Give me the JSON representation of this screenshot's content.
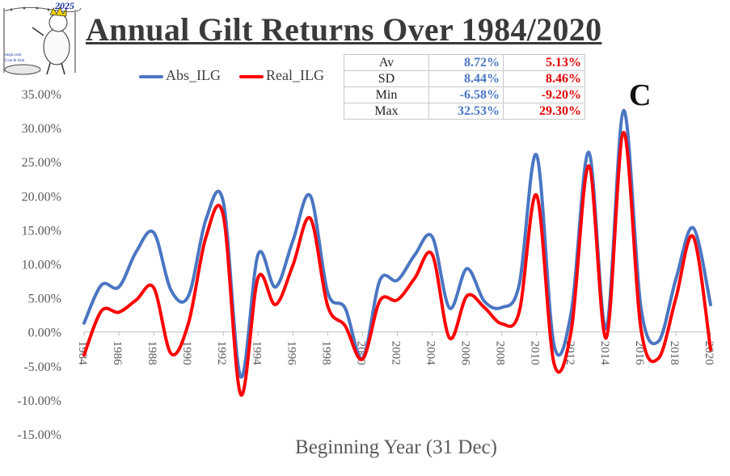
{
  "header": {
    "title": "Annual Gilt Returns Over 1984/2020",
    "logo_year": "2025",
    "logo_site": "ukrpi.com",
    "logo_tagline": "Cost & Arm"
  },
  "stats_table": {
    "rows": [
      {
        "label": "Av",
        "abs": "8.72%",
        "real": "5.13%"
      },
      {
        "label": "SD",
        "abs": "8.44%",
        "real": "8.46%"
      },
      {
        "label": "Min",
        "abs": "-6.58%",
        "real": "-9.20%"
      },
      {
        "label": "Max",
        "abs": "32.53%",
        "real": "29.30%"
      }
    ]
  },
  "corner_mark": "C",
  "colors": {
    "abs": "#4a76c2",
    "real": "#ff0000",
    "axis_text": "#595959",
    "title": "#3a3a3a"
  },
  "chart_data": {
    "type": "line",
    "title": "Annual Gilt Returns Over 1984/2020",
    "xlabel": "Beginning Year (31 Dec)",
    "ylabel": "",
    "ylim": [
      -15,
      35
    ],
    "yticks": [
      35,
      30,
      25,
      20,
      15,
      10,
      5,
      0,
      -5,
      -10,
      -15
    ],
    "ytick_labels": [
      "35.00%",
      "30.00%",
      "25.00%",
      "20.00%",
      "15.00%",
      "10.00%",
      "5.00%",
      "0.00%",
      "-5.00%",
      "-10.00%",
      "-15.00%"
    ],
    "xtick_labels": [
      "1984",
      "1986",
      "1988",
      "1990",
      "1992",
      "1994",
      "1996",
      "1998",
      "2000",
      "2002",
      "2004",
      "2006",
      "2008",
      "2010",
      "2012",
      "2014",
      "2016",
      "2018",
      "2020"
    ],
    "x": [
      1984,
      1985,
      1986,
      1987,
      1988,
      1989,
      1990,
      1991,
      1992,
      1993,
      1994,
      1995,
      1996,
      1997,
      1998,
      1999,
      2000,
      2001,
      2002,
      2003,
      2004,
      2005,
      2006,
      2007,
      2008,
      2009,
      2010,
      2011,
      2012,
      2013,
      2014,
      2015,
      2016,
      2017,
      2018,
      2019,
      2020
    ],
    "grid": false,
    "legend": "top-left",
    "series": [
      {
        "name": "Abs_ILG",
        "color": "#4a76c2",
        "values": [
          1.3,
          6.9,
          6.6,
          11.8,
          14.6,
          6.1,
          5.3,
          16.5,
          19.1,
          -6.58,
          11.4,
          6.6,
          13.4,
          20.0,
          5.8,
          3.5,
          -3.9,
          7.6,
          7.6,
          11.3,
          14.0,
          3.5,
          9.3,
          4.5,
          3.6,
          6.9,
          26.0,
          -1.9,
          3.0,
          26.4,
          0.5,
          32.53,
          3.5,
          -1.4,
          7.7,
          15.3,
          4.0
        ]
      },
      {
        "name": "Real_ILG",
        "color": "#ff0000",
        "values": [
          -3.4,
          3.1,
          2.9,
          4.7,
          6.5,
          -3.2,
          1.3,
          13.9,
          17.1,
          -9.2,
          8.0,
          4.0,
          9.8,
          16.7,
          3.8,
          0.9,
          -4.0,
          4.6,
          4.7,
          7.9,
          11.4,
          -0.9,
          5.3,
          3.6,
          1.2,
          2.9,
          20.1,
          -4.6,
          0.3,
          24.4,
          -0.9,
          29.3,
          0.4,
          -3.9,
          4.9,
          14.0,
          -2.6
        ]
      }
    ]
  }
}
